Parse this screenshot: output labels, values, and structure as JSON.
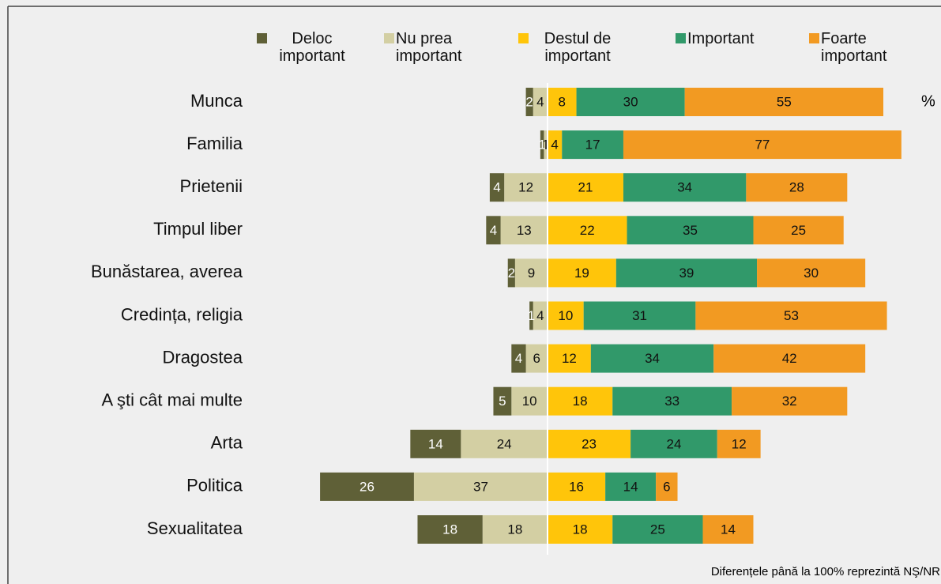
{
  "chart_data": {
    "type": "diverging_bar",
    "categories": [
      "Munca",
      "Familia",
      "Prietenii",
      "Timpul liber",
      "Bunăstarea, averea",
      "Credința, religia",
      "Dragostea",
      "A şti cât mai multe",
      "Arta",
      "Politica",
      "Sexualitatea"
    ],
    "series": [
      {
        "name": "Deloc important",
        "color": "#5f6037",
        "values": [
          2,
          1,
          4,
          4,
          2,
          1,
          4,
          5,
          14,
          26,
          18
        ]
      },
      {
        "name": "Nu prea important",
        "color": "#d3cfa3",
        "values": [
          4,
          1,
          12,
          13,
          9,
          4,
          6,
          10,
          24,
          37,
          18
        ]
      },
      {
        "name": "Destul de important",
        "color": "#ffc50a",
        "values": [
          8,
          4,
          21,
          22,
          19,
          10,
          12,
          18,
          23,
          16,
          18
        ]
      },
      {
        "name": "Important",
        "color": "#31996a",
        "values": [
          30,
          17,
          34,
          35,
          39,
          31,
          34,
          33,
          24,
          14,
          25
        ]
      },
      {
        "name": "Foarte important",
        "color": "#f29a22",
        "values": [
          55,
          77,
          28,
          25,
          30,
          53,
          42,
          32,
          12,
          6,
          14
        ]
      }
    ],
    "unit_label": "%",
    "note": "Diferențele până la 100% reprezintă NŞ/NR"
  }
}
